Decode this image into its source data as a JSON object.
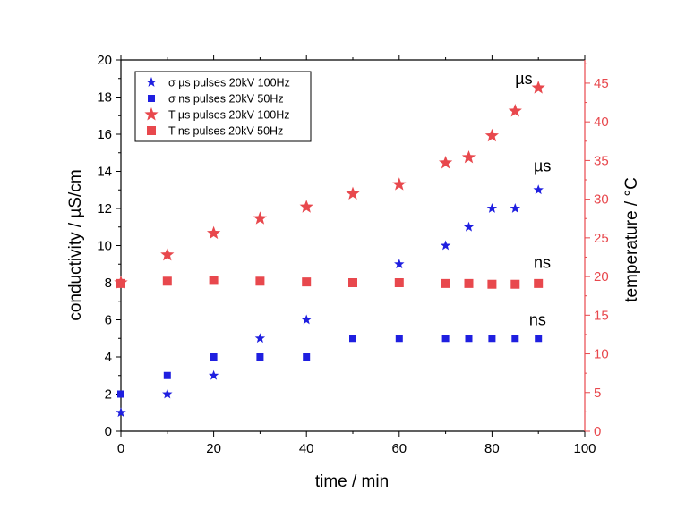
{
  "chart_data": {
    "type": "scatter",
    "xlabel": "time / min",
    "ylabel": "conductivity / µS/cm",
    "y2label": "temperature / °C",
    "xlim": [
      0,
      100
    ],
    "ylim": [
      0,
      20
    ],
    "y2lim": [
      0,
      48
    ],
    "xticks": [
      0,
      20,
      40,
      60,
      80,
      100
    ],
    "yticks": [
      0,
      2,
      4,
      6,
      8,
      10,
      12,
      14,
      16,
      18,
      20
    ],
    "y2ticks": [
      0,
      5,
      10,
      15,
      20,
      25,
      30,
      35,
      40,
      45
    ],
    "grid": false,
    "legend_position": "top-left",
    "series": [
      {
        "name": "σ µs pulses 20kV 100Hz",
        "axis": "left",
        "marker": "star-small",
        "color": "#1f1fe0",
        "x": [
          0,
          10,
          20,
          30,
          40,
          60,
          70,
          75,
          80,
          85,
          90
        ],
        "y": [
          1,
          2,
          3,
          5,
          6,
          9,
          10,
          11,
          12,
          12,
          13
        ]
      },
      {
        "name": "σ ns pulses 20kV 50Hz",
        "axis": "left",
        "marker": "square-small",
        "color": "#1f1fe0",
        "x": [
          0,
          10,
          20,
          30,
          40,
          50,
          60,
          70,
          75,
          80,
          85,
          90
        ],
        "y": [
          2,
          3,
          4,
          4,
          4,
          5,
          5,
          5,
          5,
          5,
          5,
          5
        ]
      },
      {
        "name": "T µs pulses 20kV 100Hz",
        "axis": "right",
        "marker": "star",
        "color": "#e8484d",
        "x": [
          0,
          10,
          20,
          30,
          40,
          50,
          60,
          70,
          75,
          80,
          85,
          90
        ],
        "y": [
          19.2,
          22.8,
          25.6,
          27.5,
          29.0,
          30.7,
          31.9,
          34.7,
          35.4,
          38.2,
          41.4,
          44.4
        ]
      },
      {
        "name": "T ns pulses 20kV 50Hz",
        "axis": "right",
        "marker": "square",
        "color": "#e8484d",
        "x": [
          0,
          10,
          20,
          30,
          40,
          50,
          60,
          70,
          75,
          80,
          85,
          90
        ],
        "y": [
          19.1,
          19.4,
          19.5,
          19.4,
          19.3,
          19.2,
          19.2,
          19.1,
          19.1,
          19.0,
          19.0,
          19.1
        ]
      }
    ],
    "annotations": [
      {
        "text": "µs",
        "x": 85,
        "y": 18.7,
        "axis": "left"
      },
      {
        "text": "µs",
        "x": 89,
        "y": 14.0,
        "axis": "left"
      },
      {
        "text": "ns",
        "x": 89,
        "y": 8.8,
        "axis": "left"
      },
      {
        "text": "ns",
        "x": 88,
        "y": 5.7,
        "axis": "left"
      }
    ]
  }
}
